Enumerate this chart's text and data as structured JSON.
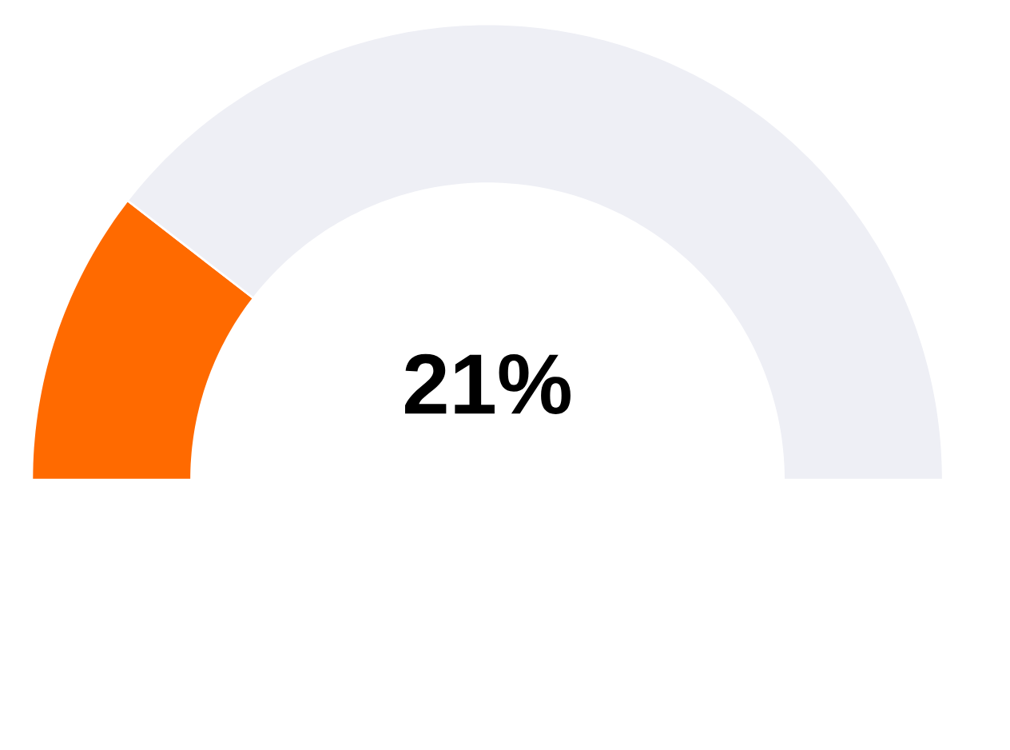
{
  "chart_data": {
    "type": "donut",
    "categories": [
      null,
      null
    ],
    "values": [
      21,
      79
    ],
    "colors": [
      "#ff6a00",
      "#eeeff5"
    ],
    "annotations": [
      "21%"
    ]
  }
}
